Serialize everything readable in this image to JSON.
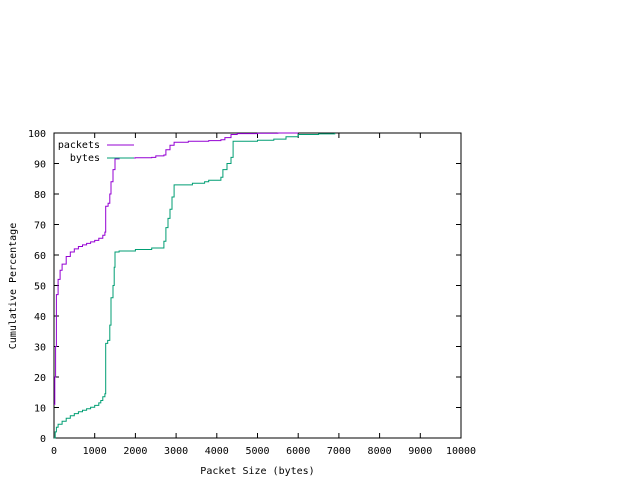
{
  "chart_data": {
    "type": "line",
    "xlabel": "Packet Size (bytes)",
    "ylabel": "Cumulative Percentage",
    "xlim": [
      0,
      10000
    ],
    "ylim": [
      0,
      100
    ],
    "xticks": [
      0,
      1000,
      2000,
      3000,
      4000,
      5000,
      6000,
      7000,
      8000,
      9000,
      10000
    ],
    "yticks": [
      0,
      10,
      20,
      30,
      40,
      50,
      60,
      70,
      80,
      90,
      100
    ],
    "grid": false,
    "legend_position": "top-left",
    "series": [
      {
        "name": "packets",
        "color": "#9400d3",
        "points": [
          [
            0,
            11
          ],
          [
            20,
            20
          ],
          [
            40,
            30
          ],
          [
            60,
            47
          ],
          [
            100,
            52
          ],
          [
            150,
            55
          ],
          [
            200,
            57
          ],
          [
            300,
            59.5
          ],
          [
            400,
            61
          ],
          [
            500,
            62
          ],
          [
            600,
            62.8
          ],
          [
            700,
            63.3
          ],
          [
            800,
            63.8
          ],
          [
            900,
            64.3
          ],
          [
            1000,
            64.8
          ],
          [
            1100,
            65.5
          ],
          [
            1200,
            66.5
          ],
          [
            1250,
            67.5
          ],
          [
            1270,
            76
          ],
          [
            1330,
            77
          ],
          [
            1370,
            80
          ],
          [
            1400,
            84
          ],
          [
            1450,
            88
          ],
          [
            1500,
            91.5
          ],
          [
            1600,
            91.8
          ],
          [
            2000,
            91.9
          ],
          [
            2400,
            92
          ],
          [
            2500,
            92.5
          ],
          [
            2700,
            92.8
          ],
          [
            2750,
            94.5
          ],
          [
            2850,
            96
          ],
          [
            2950,
            97
          ],
          [
            3300,
            97.3
          ],
          [
            3800,
            97.5
          ],
          [
            4100,
            97.8
          ],
          [
            4200,
            98.5
          ],
          [
            4350,
            99.5
          ],
          [
            4500,
            99.8
          ],
          [
            5000,
            99.9
          ],
          [
            5500,
            100
          ],
          [
            6000,
            100
          ]
        ]
      },
      {
        "name": "bytes",
        "color": "#009e73",
        "points": [
          [
            0,
            0
          ],
          [
            30,
            2
          ],
          [
            60,
            3.5
          ],
          [
            100,
            4.5
          ],
          [
            200,
            5.5
          ],
          [
            300,
            6.5
          ],
          [
            400,
            7.3
          ],
          [
            500,
            8
          ],
          [
            600,
            8.6
          ],
          [
            700,
            9.1
          ],
          [
            800,
            9.6
          ],
          [
            900,
            10.1
          ],
          [
            1000,
            10.7
          ],
          [
            1100,
            11.5
          ],
          [
            1150,
            12.3
          ],
          [
            1200,
            13.5
          ],
          [
            1250,
            14.5
          ],
          [
            1270,
            31
          ],
          [
            1320,
            32
          ],
          [
            1370,
            37
          ],
          [
            1400,
            46
          ],
          [
            1450,
            50
          ],
          [
            1480,
            56
          ],
          [
            1500,
            61
          ],
          [
            1600,
            61.3
          ],
          [
            2000,
            61.8
          ],
          [
            2400,
            62.3
          ],
          [
            2700,
            64.5
          ],
          [
            2750,
            69
          ],
          [
            2800,
            72
          ],
          [
            2850,
            75
          ],
          [
            2900,
            79
          ],
          [
            2950,
            83
          ],
          [
            3400,
            83.5
          ],
          [
            3700,
            84
          ],
          [
            3800,
            84.5
          ],
          [
            4100,
            85.5
          ],
          [
            4150,
            88
          ],
          [
            4250,
            90
          ],
          [
            4350,
            92
          ],
          [
            4400,
            97.3
          ],
          [
            5000,
            97.6
          ],
          [
            5400,
            98
          ],
          [
            5700,
            98.8
          ],
          [
            6000,
            99.5
          ],
          [
            6500,
            99.7
          ],
          [
            6900,
            100
          ]
        ]
      }
    ]
  }
}
